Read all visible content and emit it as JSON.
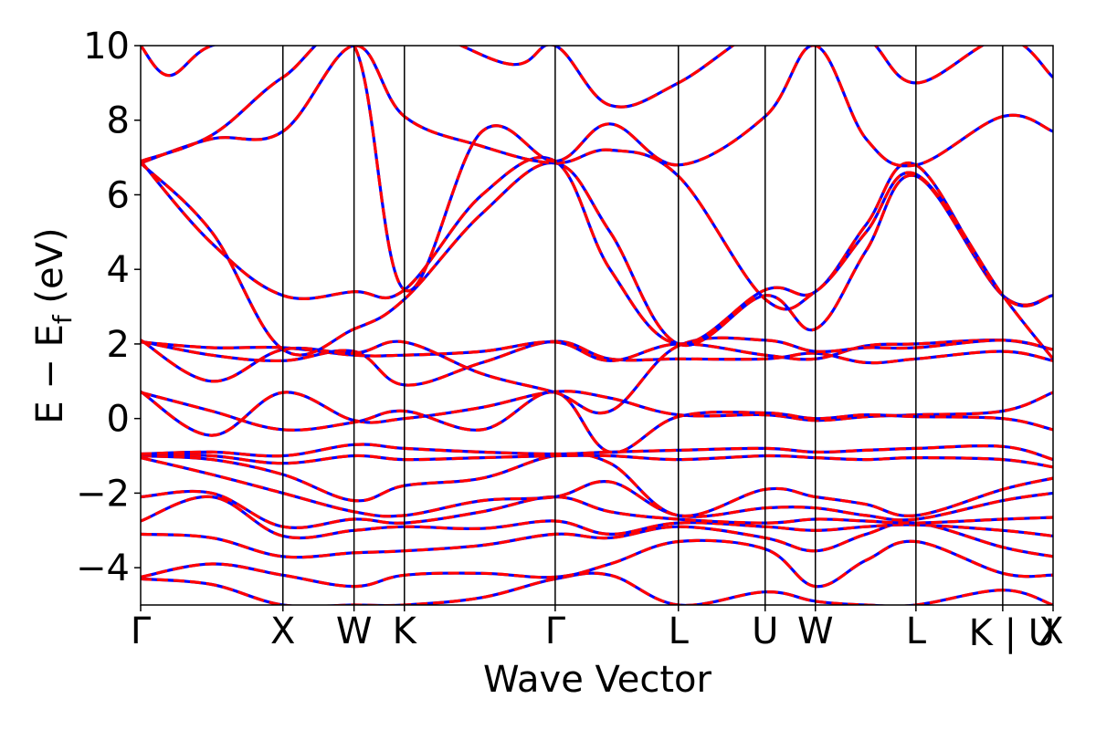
{
  "chart_data": {
    "type": "line",
    "title": "",
    "xlabel": "Wave Vector",
    "ylabel_main": "E − E",
    "ylabel_sub": "f",
    "ylabel_unit": " (eV)",
    "ylim": [
      -5,
      10
    ],
    "yticks": [
      -4,
      -2,
      0,
      2,
      4,
      6,
      8,
      10
    ],
    "ytick_labels": [
      "−4",
      "−2",
      "0",
      "2",
      "4",
      "6",
      "8",
      "10"
    ],
    "kpoints": [
      {
        "label": "Γ",
        "x": 0.0
      },
      {
        "label": "X",
        "x": 1.0
      },
      {
        "label": "W",
        "x": 1.5
      },
      {
        "label": "K",
        "x": 1.854
      },
      {
        "label": "Γ",
        "x": 2.914
      },
      {
        "label": "L",
        "x": 3.78
      },
      {
        "label": "U",
        "x": 4.39
      },
      {
        "label": "W",
        "x": 4.743
      },
      {
        "label": "L",
        "x": 5.45
      },
      {
        "label": "K | U",
        "x": 6.06
      },
      {
        "label": "X",
        "x": 6.414
      }
    ],
    "xlim": [
      0,
      6.414
    ],
    "grid": false,
    "series_styles": [
      {
        "color": "#0000ff",
        "dash": "none",
        "width": 3.2
      },
      {
        "color": "#ff0000",
        "dash": "12,6",
        "width": 3.2
      }
    ],
    "bands": [
      [
        [
          0,
          -4.3
        ],
        [
          0.5,
          -4.45
        ],
        [
          1,
          -5.0
        ],
        [
          1.5,
          -5.0
        ],
        [
          1.854,
          -5.0
        ],
        [
          2.4,
          -4.8
        ],
        [
          2.914,
          -4.3
        ],
        [
          3.3,
          -4.2
        ],
        [
          3.78,
          -5.0
        ],
        [
          4.39,
          -4.65
        ],
        [
          4.743,
          -4.9
        ],
        [
          5.1,
          -5.0
        ],
        [
          5.45,
          -5.0
        ],
        [
          6.06,
          -4.6
        ],
        [
          6.414,
          -5.0
        ]
      ],
      [
        [
          0,
          -4.25
        ],
        [
          0.5,
          -3.9
        ],
        [
          1,
          -4.2
        ],
        [
          1.5,
          -4.5
        ],
        [
          1.854,
          -4.2
        ],
        [
          2.4,
          -4.15
        ],
        [
          2.914,
          -4.25
        ],
        [
          3.3,
          -3.9
        ],
        [
          3.78,
          -3.3
        ],
        [
          4.39,
          -3.5
        ],
        [
          4.743,
          -4.5
        ],
        [
          5.1,
          -3.8
        ],
        [
          5.45,
          -3.3
        ],
        [
          6.06,
          -4.15
        ],
        [
          6.414,
          -4.2
        ]
      ],
      [
        [
          0,
          -3.1
        ],
        [
          0.5,
          -3.2
        ],
        [
          1,
          -3.7
        ],
        [
          1.5,
          -3.6
        ],
        [
          1.854,
          -3.55
        ],
        [
          2.4,
          -3.4
        ],
        [
          2.914,
          -3.1
        ],
        [
          3.3,
          -3.2
        ],
        [
          3.78,
          -2.9
        ],
        [
          4.39,
          -3.2
        ],
        [
          4.743,
          -3.55
        ],
        [
          5.1,
          -3.1
        ],
        [
          5.45,
          -2.8
        ],
        [
          6.06,
          -3.45
        ],
        [
          6.414,
          -3.7
        ]
      ],
      [
        [
          0,
          -2.75
        ],
        [
          0.5,
          -2.1
        ],
        [
          1,
          -3.15
        ],
        [
          1.5,
          -3.0
        ],
        [
          1.854,
          -2.9
        ],
        [
          2.4,
          -2.95
        ],
        [
          2.914,
          -2.75
        ],
        [
          3.3,
          -3.1
        ],
        [
          3.78,
          -2.8
        ],
        [
          4.39,
          -2.9
        ],
        [
          4.743,
          -3.0
        ],
        [
          5.1,
          -2.9
        ],
        [
          5.45,
          -2.85
        ],
        [
          6.06,
          -3.0
        ],
        [
          6.414,
          -3.15
        ]
      ],
      [
        [
          0,
          -2.1
        ],
        [
          0.5,
          -2.0
        ],
        [
          1,
          -2.9
        ],
        [
          1.5,
          -2.7
        ],
        [
          1.854,
          -2.8
        ],
        [
          2.4,
          -2.5
        ],
        [
          2.914,
          -2.1
        ],
        [
          3.3,
          -2.5
        ],
        [
          3.78,
          -2.7
        ],
        [
          4.39,
          -2.8
        ],
        [
          4.743,
          -2.7
        ],
        [
          5.1,
          -2.75
        ],
        [
          5.45,
          -2.8
        ],
        [
          6.06,
          -2.7
        ],
        [
          6.414,
          -2.65
        ]
      ],
      [
        [
          0,
          -1.05
        ],
        [
          0.5,
          -1.5
        ],
        [
          1,
          -2.0
        ],
        [
          1.5,
          -2.5
        ],
        [
          1.854,
          -2.6
        ],
        [
          2.4,
          -2.2
        ],
        [
          2.914,
          -2.1
        ],
        [
          3.3,
          -1.7
        ],
        [
          3.78,
          -2.6
        ],
        [
          4.39,
          -2.4
        ],
        [
          4.743,
          -2.4
        ],
        [
          5.1,
          -2.6
        ],
        [
          5.45,
          -2.7
        ],
        [
          6.06,
          -2.2
        ],
        [
          6.414,
          -2.0
        ]
      ],
      [
        [
          0,
          -1.0
        ],
        [
          0.5,
          -1.1
        ],
        [
          1,
          -1.5
        ],
        [
          1.5,
          -2.2
        ],
        [
          1.854,
          -1.8
        ],
        [
          2.4,
          -1.6
        ],
        [
          2.914,
          -1.0
        ],
        [
          3.3,
          -1.2
        ],
        [
          3.78,
          -2.6
        ],
        [
          4.39,
          -1.9
        ],
        [
          4.743,
          -2.1
        ],
        [
          5.1,
          -2.3
        ],
        [
          5.45,
          -2.6
        ],
        [
          6.06,
          -1.9
        ],
        [
          6.414,
          -1.6
        ]
      ],
      [
        [
          0,
          -0.95
        ],
        [
          0.5,
          -1.0
        ],
        [
          1,
          -1.2
        ],
        [
          1.5,
          -1.0
        ],
        [
          1.854,
          -1.1
        ],
        [
          2.4,
          -1.05
        ],
        [
          2.914,
          -1.0
        ],
        [
          3.3,
          -1.0
        ],
        [
          3.78,
          -1.1
        ],
        [
          4.39,
          -1.0
        ],
        [
          4.743,
          -1.05
        ],
        [
          5.1,
          -1.1
        ],
        [
          5.45,
          -1.05
        ],
        [
          6.06,
          -1.1
        ],
        [
          6.414,
          -1.3
        ]
      ],
      [
        [
          0,
          -0.95
        ],
        [
          0.5,
          -0.9
        ],
        [
          1,
          -1.0
        ],
        [
          1.5,
          -0.7
        ],
        [
          1.854,
          -0.8
        ],
        [
          2.4,
          -0.9
        ],
        [
          2.914,
          -0.95
        ],
        [
          3.3,
          -0.9
        ],
        [
          3.78,
          -0.85
        ],
        [
          4.39,
          -0.8
        ],
        [
          4.743,
          -0.9
        ],
        [
          5.1,
          -0.85
        ],
        [
          5.45,
          -0.8
        ],
        [
          6.06,
          -0.75
        ],
        [
          6.414,
          -1.1
        ]
      ],
      [
        [
          0,
          0.72
        ],
        [
          0.5,
          -0.45
        ],
        [
          1,
          0.7
        ],
        [
          1.5,
          -0.05
        ],
        [
          1.854,
          0.0
        ],
        [
          2.4,
          0.3
        ],
        [
          2.914,
          0.72
        ],
        [
          3.3,
          0.55
        ],
        [
          3.78,
          0.1
        ],
        [
          4.39,
          0.1
        ],
        [
          4.743,
          -0.05
        ],
        [
          5.1,
          0.05
        ],
        [
          5.45,
          0.1
        ],
        [
          6.06,
          0.2
        ],
        [
          6.414,
          0.7
        ]
      ],
      [
        [
          0,
          0.7
        ],
        [
          0.5,
          0.2
        ],
        [
          1,
          -0.3
        ],
        [
          1.5,
          -0.1
        ],
        [
          1.854,
          0.2
        ],
        [
          2.4,
          -0.3
        ],
        [
          2.914,
          0.7
        ],
        [
          3.3,
          -0.9
        ],
        [
          3.78,
          0.05
        ],
        [
          4.39,
          0.15
        ],
        [
          4.743,
          0.0
        ],
        [
          5.1,
          0.1
        ],
        [
          5.45,
          0.05
        ],
        [
          6.06,
          0.0
        ],
        [
          6.414,
          -0.3
        ]
      ],
      [
        [
          0,
          2.07
        ],
        [
          0.5,
          1.7
        ],
        [
          1,
          1.55
        ],
        [
          1.5,
          1.8
        ],
        [
          1.854,
          0.9
        ],
        [
          2.4,
          1.5
        ],
        [
          2.914,
          2.07
        ],
        [
          3.3,
          1.6
        ],
        [
          3.78,
          1.6
        ],
        [
          4.39,
          1.6
        ],
        [
          4.743,
          1.75
        ],
        [
          5.1,
          1.5
        ],
        [
          5.45,
          1.6
        ],
        [
          6.06,
          1.8
        ],
        [
          6.414,
          1.55
        ]
      ],
      [
        [
          0,
          2.05
        ],
        [
          0.5,
          1.9
        ],
        [
          1,
          1.9
        ],
        [
          1.5,
          1.7
        ],
        [
          1.854,
          1.7
        ],
        [
          2.4,
          1.8
        ],
        [
          2.914,
          2.05
        ],
        [
          3.3,
          1.55
        ],
        [
          3.78,
          2.0
        ],
        [
          4.39,
          1.7
        ],
        [
          4.743,
          1.6
        ],
        [
          5.1,
          1.95
        ],
        [
          5.45,
          2.0
        ],
        [
          6.06,
          2.1
        ],
        [
          6.414,
          1.85
        ]
      ],
      [
        [
          0,
          2.1
        ],
        [
          0.5,
          1.0
        ],
        [
          1,
          1.85
        ],
        [
          1.5,
          1.75
        ],
        [
          1.854,
          2.05
        ],
        [
          2.4,
          1.2
        ],
        [
          2.914,
          0.7
        ],
        [
          3.3,
          0.2
        ],
        [
          3.78,
          1.95
        ],
        [
          4.39,
          2.1
        ],
        [
          4.743,
          1.8
        ],
        [
          5.1,
          1.9
        ],
        [
          5.45,
          1.9
        ],
        [
          6.06,
          2.1
        ],
        [
          6.414,
          1.85
        ]
      ],
      [
        [
          0,
          6.85
        ],
        [
          0.5,
          5.0
        ],
        [
          1,
          1.85
        ],
        [
          1.5,
          2.4
        ],
        [
          1.854,
          3.2
        ],
        [
          2.4,
          5.5
        ],
        [
          2.914,
          6.85
        ],
        [
          3.3,
          5.0
        ],
        [
          3.78,
          2.0
        ],
        [
          4.39,
          3.3
        ],
        [
          4.743,
          2.4
        ],
        [
          5.1,
          4.5
        ],
        [
          5.45,
          6.5
        ],
        [
          6.06,
          3.3
        ],
        [
          6.414,
          3.3
        ]
      ],
      [
        [
          0,
          6.9
        ],
        [
          0.5,
          4.7
        ],
        [
          1,
          3.3
        ],
        [
          1.5,
          3.4
        ],
        [
          1.854,
          3.45
        ],
        [
          2.4,
          6.0
        ],
        [
          2.914,
          6.9
        ],
        [
          3.3,
          4.0
        ],
        [
          3.78,
          2.0
        ],
        [
          4.39,
          3.45
        ],
        [
          4.743,
          3.4
        ],
        [
          5.1,
          5.2
        ],
        [
          5.45,
          6.8
        ],
        [
          6.06,
          3.3
        ],
        [
          6.414,
          3.3
        ]
      ],
      [
        [
          0,
          6.85
        ],
        [
          0.5,
          7.5
        ],
        [
          1,
          7.7
        ],
        [
          1.5,
          10.0
        ],
        [
          1.854,
          8.1
        ],
        [
          2.4,
          7.3
        ],
        [
          2.914,
          6.85
        ],
        [
          3.3,
          7.2
        ],
        [
          3.78,
          6.5
        ],
        [
          4.39,
          3.2
        ],
        [
          4.743,
          3.4
        ],
        [
          5.1,
          5.0
        ],
        [
          5.45,
          6.55
        ],
        [
          6.06,
          3.3
        ],
        [
          6.414,
          1.6
        ]
      ],
      [
        [
          0,
          6.9
        ],
        [
          0.5,
          7.6
        ],
        [
          1,
          9.15
        ],
        [
          1.5,
          10.0
        ],
        [
          1.854,
          3.45
        ],
        [
          2.4,
          7.7
        ],
        [
          2.914,
          6.9
        ],
        [
          3.3,
          7.9
        ],
        [
          3.78,
          6.8
        ],
        [
          4.39,
          8.1
        ],
        [
          4.743,
          10.0
        ],
        [
          5.1,
          7.5
        ],
        [
          5.45,
          6.8
        ],
        [
          6.06,
          8.1
        ],
        [
          6.414,
          7.7
        ]
      ],
      [
        [
          0,
          10.0
        ],
        [
          0.2,
          9.2
        ],
        [
          0.5,
          10.0
        ],
        [
          1,
          10.2
        ],
        [
          1.854,
          10.5
        ],
        [
          2.6,
          9.5
        ],
        [
          2.914,
          10.0
        ],
        [
          3.3,
          8.4
        ],
        [
          3.78,
          9.0
        ],
        [
          4.39,
          10.5
        ],
        [
          4.743,
          10.2
        ],
        [
          5.1,
          10.2
        ],
        [
          5.45,
          9.0
        ],
        [
          6.06,
          10.2
        ],
        [
          6.414,
          9.15
        ]
      ]
    ]
  }
}
